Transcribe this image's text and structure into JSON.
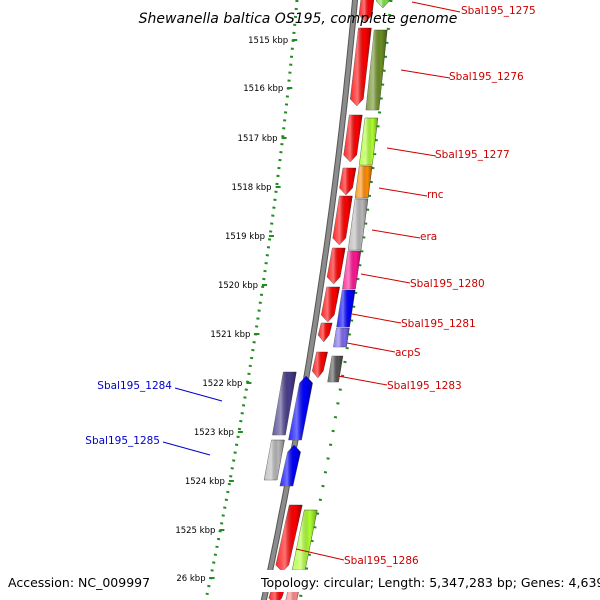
{
  "title": "Shewanella baltica OS195, complete genome",
  "footer": {
    "accession": "Accession: NC_009997",
    "topology": "Topology: circular; Length: 5,347,283 bp; Genes: 4,639"
  },
  "ruler_ticks": [
    "1515 kbp",
    "1516 kbp",
    "1517 kbp",
    "1518 kbp",
    "1519 kbp",
    "1520 kbp",
    "1521 kbp",
    "1522 kbp",
    "1523 kbp",
    "1524 kbp",
    "1525 kbp",
    "26 kbp"
  ],
  "genes_right": [
    {
      "label": "Sbal195_1275",
      "color": "#7ee04a"
    },
    {
      "label": "Sbal195_1276",
      "color": "#6b8e23"
    },
    {
      "label": "Sbal195_1277",
      "color": "#adff2f"
    },
    {
      "label": "rnc",
      "color": "#ff8c00"
    },
    {
      "label": "era",
      "color": "#b8b8b8"
    },
    {
      "label": "Sbal195_1280",
      "color": "#ff1493"
    },
    {
      "label": "Sbal195_1281",
      "color": "#0000ff"
    },
    {
      "label": "acpS",
      "color": "#7b68ee"
    },
    {
      "label": "Sbal195_1283",
      "color": "#555555"
    },
    {
      "label": "Sbal195_1286",
      "color": "#adff2f"
    }
  ],
  "genes_left": [
    {
      "label": "Sbal195_1284",
      "color": "#483d8b"
    },
    {
      "label": "Sbal195_1285",
      "color": "#b8b8b8"
    }
  ],
  "colors": {
    "cog_strand": "#ff0000",
    "forward_strand": "#0000ff",
    "backbone": "#8c8c8c",
    "ruler_dots": "#228b22",
    "label_red": "#cc0000",
    "label_blue": "#0000cc"
  }
}
